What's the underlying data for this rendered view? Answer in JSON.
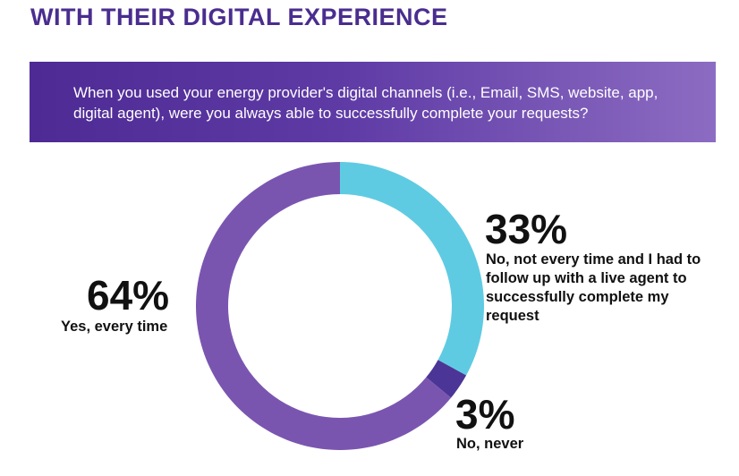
{
  "heading": "WITH THEIR DIGITAL EXPERIENCE",
  "question": "When you used your energy provider's digital channels (i.e., Email, SMS, website, app, digital agent), were you always able to successfully complete your requests?",
  "colors": {
    "heading": "#4a2d8f",
    "yes": "#7a55b0",
    "not_every_time": "#5fcbe2",
    "never": "#4b3596"
  },
  "chart_data": {
    "type": "pie",
    "subtype": "donut",
    "title": "When you used your energy provider's digital channels (i.e., Email, SMS, website, app, digital agent), were you always able to successfully complete your requests?",
    "slices": [
      {
        "label": "No, not every time and I had to follow up with a live agent to successfully complete my request",
        "value": 33,
        "display": "33%"
      },
      {
        "label": "No, never",
        "value": 3,
        "display": "3%"
      },
      {
        "label": "Yes, every time",
        "value": 64,
        "display": "64%"
      }
    ]
  }
}
